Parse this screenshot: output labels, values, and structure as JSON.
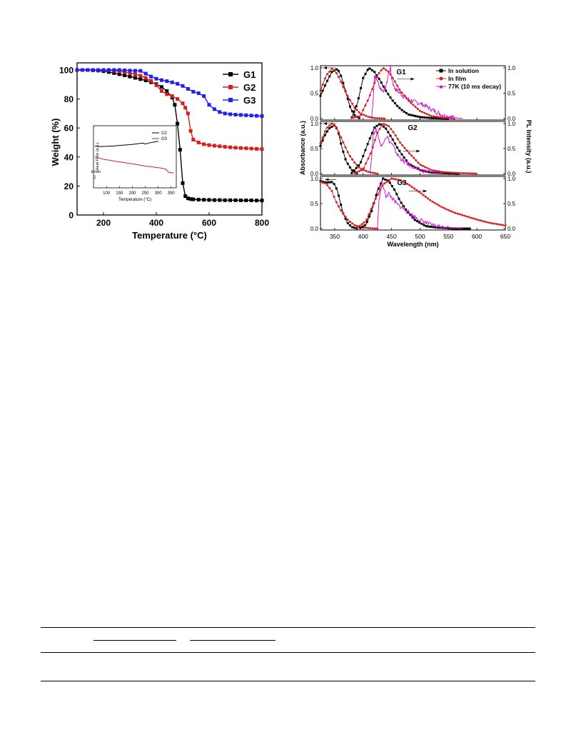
{
  "colors": {
    "black": "#000000",
    "red": "#d62020",
    "blue": "#2020ee",
    "magenta": "#d400d4"
  },
  "chart_data": [
    {
      "type": "line",
      "xlabel": "Temperature (°C)",
      "ylabel": "Weight (%)",
      "xlim": [
        100,
        800
      ],
      "ylim": [
        0,
        100
      ],
      "x_ticks": [
        "200",
        "400",
        "600",
        "800"
      ],
      "y_ticks": [
        "0",
        "20",
        "40",
        "60",
        "80",
        "100"
      ],
      "legend_position": "top-right",
      "series": [
        {
          "name": "G1",
          "color": "#000000",
          "marker": "square",
          "x": [
            100,
            120,
            140,
            160,
            180,
            200,
            220,
            240,
            260,
            280,
            300,
            320,
            340,
            360,
            380,
            400,
            420,
            440,
            460,
            470,
            480,
            490,
            500,
            510,
            520,
            530,
            540,
            560,
            580,
            600,
            620,
            640,
            660,
            680,
            700,
            720,
            740,
            760,
            780,
            800
          ],
          "y": [
            100,
            100,
            100,
            99.8,
            99.6,
            99.2,
            98.6,
            97.9,
            97.1,
            96.3,
            95.5,
            94.6,
            93.7,
            92.8,
            91.6,
            90.2,
            88.3,
            85.5,
            81,
            76,
            63,
            45,
            22,
            13,
            11.5,
            11,
            10.8,
            10.6,
            10.5,
            10.4,
            10.3,
            10.3,
            10.2,
            10.2,
            10.2,
            10.1,
            10.1,
            10.1,
            10,
            10
          ]
        },
        {
          "name": "G2",
          "color": "#d62020",
          "marker": "square",
          "x": [
            100,
            120,
            140,
            160,
            180,
            200,
            220,
            240,
            260,
            280,
            300,
            320,
            340,
            360,
            380,
            400,
            420,
            440,
            460,
            480,
            500,
            510,
            520,
            530,
            540,
            560,
            580,
            600,
            620,
            640,
            660,
            680,
            700,
            720,
            740,
            760,
            780,
            800
          ],
          "y": [
            100,
            100,
            100,
            100,
            100,
            99.9,
            99.8,
            99.5,
            99.1,
            98.6,
            98,
            97.2,
            96,
            94.5,
            92.5,
            89.5,
            85.5,
            83.3,
            82,
            80,
            77,
            74,
            70,
            58,
            52,
            50,
            48.8,
            48.2,
            47.8,
            47.4,
            47,
            46.7,
            46.4,
            46.2,
            46,
            45.8,
            45.6,
            45.4
          ]
        },
        {
          "name": "G3",
          "color": "#2020ee",
          "marker": "square",
          "x": [
            100,
            120,
            140,
            160,
            180,
            200,
            220,
            240,
            260,
            280,
            300,
            320,
            340,
            360,
            380,
            400,
            420,
            440,
            460,
            480,
            500,
            520,
            540,
            560,
            580,
            600,
            620,
            640,
            660,
            680,
            700,
            720,
            740,
            760,
            780,
            800
          ],
          "y": [
            100,
            100,
            100,
            100,
            100,
            100,
            100,
            100,
            100,
            99.8,
            99.6,
            99.5,
            99.4,
            97.5,
            95.5,
            94,
            93,
            92.3,
            91.5,
            90.5,
            89,
            87,
            85,
            84,
            82,
            76,
            73,
            71,
            70,
            69.5,
            69.2,
            69,
            68.8,
            68.6,
            68.4,
            68.2
          ]
        }
      ],
      "inset": {
        "type": "line",
        "xlabel": "Temperature (°C)",
        "ylabel": "Heat Flow (a.u.)",
        "annotation": "Endo",
        "x_ticks": [
          "100",
          "150",
          "200",
          "250",
          "300",
          "350"
        ],
        "xlim": [
          50,
          370
        ],
        "ylim": [
          0,
          1
        ],
        "series": [
          {
            "name": "G2",
            "color": "#000000",
            "x": [
              55,
              80,
              100,
              130,
              160,
              190,
              210,
              230,
              240,
              245,
              250,
              255,
              260,
              265,
              270,
              280,
              290,
              300
            ],
            "y": [
              0.67,
              0.665,
              0.668,
              0.675,
              0.685,
              0.695,
              0.705,
              0.715,
              0.72,
              0.715,
              0.705,
              0.71,
              0.715,
              0.722,
              0.728,
              0.735,
              0.742,
              0.75
            ]
          },
          {
            "name": "G3",
            "color": "#d62020",
            "x": [
              55,
              70,
              90,
              110,
              130,
              150,
              170,
              190,
              210,
              230,
              250,
              270,
              290,
              310,
              330,
              340,
              350,
              360
            ],
            "y": [
              0.5,
              0.48,
              0.46,
              0.445,
              0.43,
              0.418,
              0.405,
              0.392,
              0.38,
              0.365,
              0.35,
              0.342,
              0.33,
              0.318,
              0.3,
              0.25,
              0.245,
              0.24
            ]
          }
        ]
      }
    },
    {
      "type": "line",
      "xlabel": "Wavelength (nm)",
      "ylabel_left": "Absorbance (a.u.)",
      "ylabel_right": "PL Intensity (a.u.)",
      "xlim": [
        325,
        650
      ],
      "x_ticks": [
        "350",
        "400",
        "450",
        "500",
        "550",
        "600",
        "650"
      ],
      "y_ticks": [
        "0.0",
        "0.5",
        "1.0"
      ],
      "legend_position": "top-right",
      "legend": [
        {
          "name": "In solution",
          "color": "#000000",
          "marker": "square"
        },
        {
          "name": "In film",
          "color": "#d62020",
          "marker": "circle"
        },
        {
          "name": "77K (10 ms decay)",
          "color": "#d400d4",
          "marker": "triangle"
        }
      ],
      "panels": [
        {
          "label": "G1",
          "abs_solution": {
            "x": [
              325,
              335,
              345,
              355,
              362,
              370,
              378,
              386,
              395
            ],
            "y": [
              0.45,
              0.7,
              0.92,
              0.98,
              0.82,
              0.5,
              0.2,
              0.05,
              0.0
            ]
          },
          "abs_film": {
            "x": [
              325,
              335,
              345,
              350,
              358,
              366,
              375,
              385,
              395,
              410,
              420,
              440
            ],
            "y": [
              0.55,
              0.85,
              0.98,
              0.95,
              0.8,
              0.6,
              0.4,
              0.22,
              0.1,
              0.03,
              0.01,
              0.0
            ]
          },
          "pl_solution": {
            "x": [
              380,
              390,
              400,
              410,
              420,
              430,
              440,
              450,
              460,
              470,
              480,
              500,
              520,
              550
            ],
            "y": [
              0.02,
              0.3,
              0.8,
              1.0,
              0.92,
              0.75,
              0.55,
              0.38,
              0.25,
              0.15,
              0.08,
              0.03,
              0.01,
              0.0
            ]
          },
          "pl_film": {
            "x": [
              380,
              395,
              410,
              425,
              435,
              445,
              455,
              465,
              480,
              500,
              520,
              540,
              560
            ],
            "y": [
              0.01,
              0.05,
              0.4,
              0.85,
              1.0,
              0.92,
              0.75,
              0.55,
              0.35,
              0.15,
              0.05,
              0.02,
              0.0
            ]
          },
          "pl_77k": {
            "x": [
              415,
              418,
              420,
              425,
              430,
              435,
              440,
              445,
              448,
              450,
              455,
              460,
              470,
              480,
              490,
              500,
              510,
              520,
              540,
              560,
              575
            ],
            "y": [
              0.0,
              0.45,
              0.85,
              0.75,
              0.6,
              0.55,
              0.62,
              0.9,
              1.0,
              0.8,
              0.6,
              0.55,
              0.45,
              0.38,
              0.33,
              0.3,
              0.25,
              0.18,
              0.07,
              0.02,
              0.0
            ]
          },
          "arrows": [
            {
              "from": 352,
              "to": 330,
              "y": 1.0
            },
            {
              "from": 460,
              "to": 490,
              "y": 0.78
            }
          ]
        },
        {
          "label": "G2",
          "abs_solution": {
            "x": [
              325,
              332,
              340,
              350,
              356,
              362,
              370,
              380,
              390
            ],
            "y": [
              0.55,
              0.75,
              0.9,
              0.97,
              0.85,
              0.55,
              0.25,
              0.07,
              0.0
            ]
          },
          "abs_film": {
            "x": [
              325,
              335,
              345,
              352,
              360,
              368,
              375,
              385,
              395,
              410,
              425
            ],
            "y": [
              0.6,
              0.9,
              1.0,
              0.95,
              0.75,
              0.55,
              0.38,
              0.22,
              0.1,
              0.03,
              0.0
            ]
          },
          "pl_solution": {
            "x": [
              380,
              395,
              410,
              420,
              430,
              440,
              450,
              460,
              470,
              480,
              500,
              520,
              540,
              570
            ],
            "y": [
              0.01,
              0.2,
              0.65,
              0.92,
              1.0,
              0.9,
              0.72,
              0.52,
              0.35,
              0.2,
              0.07,
              0.02,
              0.01,
              0.0
            ]
          },
          "pl_film": {
            "x": [
              385,
              400,
              415,
              425,
              435,
              445,
              455,
              465,
              480,
              500,
              520,
              540,
              570,
              600
            ],
            "y": [
              0.01,
              0.08,
              0.45,
              0.82,
              1.0,
              0.95,
              0.8,
              0.62,
              0.42,
              0.18,
              0.07,
              0.03,
              0.01,
              0.0
            ]
          },
          "pl_77k": {
            "x": [
              412,
              415,
              418,
              422,
              426,
              430,
              434,
              438,
              442,
              446,
              450,
              455,
              460,
              470,
              480,
              490,
              500,
              520,
              540
            ],
            "y": [
              0.0,
              0.35,
              0.8,
              0.88,
              0.78,
              0.6,
              0.55,
              0.72,
              0.75,
              0.65,
              0.6,
              0.5,
              0.38,
              0.25,
              0.18,
              0.12,
              0.07,
              0.02,
              0.0
            ]
          },
          "arrows": [
            {
              "from": 352,
              "to": 330,
              "y": 1.0
            },
            {
              "from": 470,
              "to": 500,
              "y": 0.45
            }
          ]
        },
        {
          "label": "G3",
          "abs_solution": {
            "x": [
              325,
              335,
              345,
              350,
              355,
              360,
              365,
              372,
              380,
              390
            ],
            "y": [
              0.95,
              0.92,
              0.93,
              0.88,
              0.75,
              0.52,
              0.3,
              0.12,
              0.03,
              0.0
            ]
          },
          "abs_film": {
            "x": [
              325,
              335,
              345,
              352,
              360,
              368,
              375,
              385,
              395,
              410,
              425
            ],
            "y": [
              0.93,
              0.9,
              0.75,
              0.55,
              0.38,
              0.25,
              0.15,
              0.07,
              0.03,
              0.01,
              0.0
            ]
          },
          "pl_solution": {
            "x": [
              395,
              405,
              415,
              425,
              435,
              445,
              455,
              465,
              475,
              490,
              510,
              530,
              560,
              590
            ],
            "y": [
              0.01,
              0.08,
              0.35,
              0.75,
              1.0,
              0.95,
              0.78,
              0.55,
              0.38,
              0.18,
              0.05,
              0.02,
              0.0,
              0.0
            ]
          },
          "pl_film": {
            "x": [
              390,
              405,
              420,
              435,
              450,
              465,
              480,
              500,
              520,
              540,
              560,
              580,
              600,
              620,
              640,
              650
            ],
            "y": [
              0.02,
              0.15,
              0.55,
              0.88,
              1.0,
              0.97,
              0.88,
              0.72,
              0.55,
              0.42,
              0.32,
              0.25,
              0.18,
              0.12,
              0.08,
              0.06
            ]
          },
          "pl_77k": {
            "x": [
              425,
              428,
              432,
              436,
              440,
              445,
              450,
              455,
              460,
              470,
              480,
              490,
              500,
              520,
              540,
              560,
              575
            ],
            "y": [
              0.0,
              0.55,
              0.95,
              0.82,
              0.65,
              0.7,
              0.62,
              0.55,
              0.48,
              0.4,
              0.32,
              0.24,
              0.17,
              0.07,
              0.03,
              0.01,
              0.0
            ]
          },
          "arrows": [
            {
              "from": 353,
              "to": 333,
              "y": 0.98
            },
            {
              "from": 480,
              "to": 512,
              "y": 0.75
            }
          ]
        }
      ]
    }
  ]
}
